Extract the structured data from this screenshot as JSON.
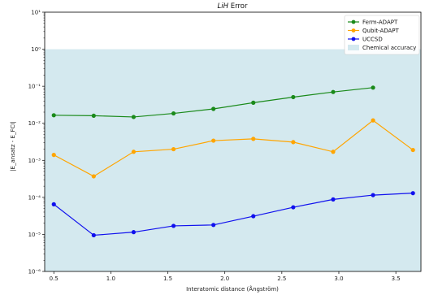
{
  "chart_data": {
    "type": "line",
    "title": "LiH Error",
    "xlabel": "Interatomic distance (Ångström)",
    "ylabel": "|E_ansatz - E_FCI|",
    "yscale": "log",
    "xlim": [
      0.42,
      3.72
    ],
    "ylim": [
      1e-06,
      10
    ],
    "xticks": [
      0.5,
      1.0,
      1.5,
      2.0,
      2.5,
      3.0,
      3.5
    ],
    "xtick_labels": [
      "0.5",
      "1.0",
      "1.5",
      "2.0",
      "2.5",
      "3.0",
      "3.5"
    ],
    "yticks": [
      1e-06,
      1e-05,
      0.0001,
      0.001,
      0.01,
      0.1,
      1,
      10
    ],
    "ytick_labels": [
      "10⁻⁶",
      "10⁻⁵",
      "10⁻⁴",
      "10⁻³",
      "10⁻²",
      "10⁻¹",
      "10⁰",
      "10¹"
    ],
    "legend_position": "top-right",
    "chemical_accuracy": {
      "name": "Chemical accuracy",
      "below": 1.0,
      "color": "#d4e9ef"
    },
    "series": [
      {
        "name": "Ferm-ADAPT",
        "color": "#1a8a1a",
        "x": [
          0.5,
          0.85,
          1.2,
          1.55,
          1.9,
          2.25,
          2.6,
          2.95,
          3.3
        ],
        "y": [
          0.0165,
          0.016,
          0.0148,
          0.0185,
          0.0245,
          0.036,
          0.051,
          0.07,
          0.092
        ]
      },
      {
        "name": "Qubit-ADAPT",
        "color": "#ffa500",
        "x": [
          0.5,
          0.85,
          1.2,
          1.55,
          1.9,
          2.25,
          2.6,
          2.95,
          3.3,
          3.65
        ],
        "y": [
          0.0014,
          0.00037,
          0.0017,
          0.002,
          0.0034,
          0.0038,
          0.0031,
          0.0017,
          0.012,
          0.0019
        ]
      },
      {
        "name": "UCCSD",
        "color": "#1010ee",
        "x": [
          0.5,
          0.85,
          1.2,
          1.55,
          1.9,
          2.25,
          2.6,
          2.95,
          3.3,
          3.65
        ],
        "y": [
          6.5e-05,
          9.5e-06,
          1.15e-05,
          1.7e-05,
          1.8e-05,
          3.1e-05,
          5.4e-05,
          8.8e-05,
          0.000115,
          0.00013
        ]
      }
    ]
  }
}
